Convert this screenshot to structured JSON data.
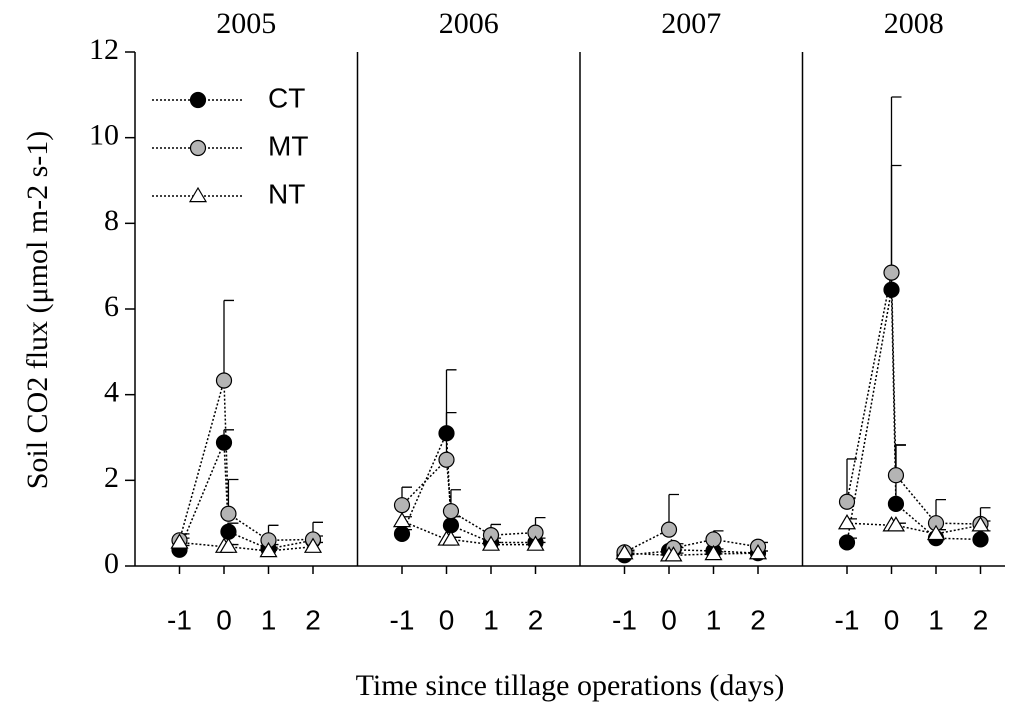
{
  "chart_data": {
    "type": "line",
    "ylabel": "Soil CO2 flux (μmol m-2 s-1)",
    "xlabel": "Time since tillage operations (days)",
    "ylim": [
      0,
      12
    ],
    "yticks": [
      0,
      2,
      4,
      6,
      8,
      10,
      12
    ],
    "xlim": [
      -2,
      3
    ],
    "xticks": [
      -1,
      0,
      1,
      2
    ],
    "legend": "upper left",
    "panels": [
      {
        "title": "2005",
        "x": [
          -1,
          0,
          0.1,
          1,
          2
        ],
        "series": [
          {
            "name": "CT",
            "color": "#000000",
            "marker": "circle",
            "values": [
              0.38,
              2.88,
              0.8,
              0.4,
              0.6
            ],
            "errors": [
              0.1,
              0.3,
              0.2,
              0.1,
              0.1
            ]
          },
          {
            "name": "MT",
            "color": "#b4b4b4",
            "marker": "circle",
            "values": [
              0.6,
              4.33,
              1.22,
              0.6,
              0.62
            ],
            "errors": [
              0.15,
              1.87,
              0.8,
              0.35,
              0.4
            ]
          },
          {
            "name": "NT",
            "color": "#ffffff",
            "marker": "triangle",
            "values": [
              0.55,
              0.45,
              0.45,
              0.35,
              0.45
            ],
            "errors": [
              0.1,
              0.05,
              0.05,
              0.05,
              0.1
            ]
          }
        ]
      },
      {
        "title": "2006",
        "x": [
          -1,
          0,
          0.1,
          1,
          2
        ],
        "series": [
          {
            "name": "CT",
            "color": "#000000",
            "marker": "circle",
            "values": [
              0.75,
              3.1,
              0.95,
              0.55,
              0.55
            ],
            "errors": [
              0.1,
              0.48,
              0.2,
              0.1,
              0.1
            ]
          },
          {
            "name": "MT",
            "color": "#b4b4b4",
            "marker": "circle",
            "values": [
              1.42,
              2.48,
              1.28,
              0.72,
              0.78
            ],
            "errors": [
              0.42,
              2.1,
              0.5,
              0.25,
              0.35
            ]
          },
          {
            "name": "NT",
            "color": "#ffffff",
            "marker": "triangle",
            "values": [
              1.05,
              0.62,
              0.62,
              0.5,
              0.5
            ],
            "errors": [
              0.1,
              0.05,
              0.05,
              0.05,
              0.05
            ]
          }
        ]
      },
      {
        "title": "2007",
        "x": [
          -1,
          0,
          0.1,
          1,
          2
        ],
        "series": [
          {
            "name": "CT",
            "color": "#000000",
            "marker": "circle",
            "values": [
              0.25,
              0.35,
              0.38,
              0.35,
              0.3
            ],
            "errors": [
              0.05,
              0.05,
              0.05,
              0.05,
              0.05
            ]
          },
          {
            "name": "MT",
            "color": "#b4b4b4",
            "marker": "circle",
            "values": [
              0.32,
              0.85,
              0.42,
              0.62,
              0.45
            ],
            "errors": [
              0.05,
              0.82,
              0.1,
              0.2,
              0.1
            ]
          },
          {
            "name": "NT",
            "color": "#ffffff",
            "marker": "triangle",
            "values": [
              0.3,
              0.25,
              0.25,
              0.28,
              0.3
            ],
            "errors": [
              0.05,
              0.05,
              0.05,
              0.05,
              0.05
            ]
          }
        ]
      },
      {
        "title": "2008",
        "x": [
          -1,
          0,
          0.1,
          1,
          2
        ],
        "series": [
          {
            "name": "CT",
            "color": "#000000",
            "marker": "circle",
            "values": [
              0.55,
              6.45,
              1.45,
              0.65,
              0.62
            ],
            "errors": [
              0.1,
              2.9,
              1.38,
              0.2,
              0.2
            ]
          },
          {
            "name": "MT",
            "color": "#b4b4b4",
            "marker": "circle",
            "values": [
              1.5,
              6.85,
              2.12,
              1.0,
              0.98
            ],
            "errors": [
              1.0,
              4.1,
              0.7,
              0.55,
              0.38
            ]
          },
          {
            "name": "NT",
            "color": "#ffffff",
            "marker": "triangle",
            "values": [
              1.0,
              0.95,
              0.95,
              0.75,
              0.95
            ],
            "errors": [
              0.1,
              0.05,
              0.05,
              0.1,
              0.1
            ]
          }
        ]
      }
    ]
  }
}
